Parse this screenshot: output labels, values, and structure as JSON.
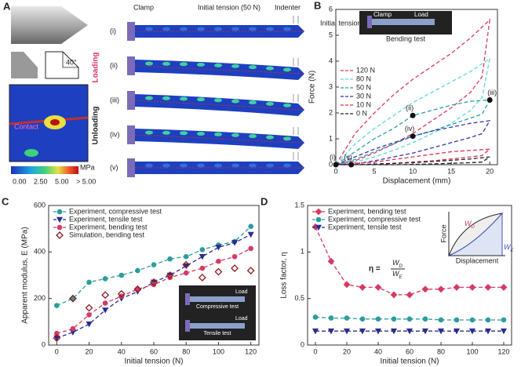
{
  "panel_a": {
    "label": "A",
    "clamp": "Clamp",
    "tension": "Initial tension (50 N)",
    "indenter": "Indenter",
    "stages": [
      "(i)",
      "(ii)",
      "(iii)",
      "(iv)",
      "(v)"
    ],
    "loading": "Loading",
    "unloading": "Unloading",
    "angle": "40°",
    "contact": "Contact",
    "colorbar_ticks": [
      "0.00",
      "2.50",
      "5.00",
      "> 5.00"
    ],
    "colorbar_unit": "MPa"
  },
  "chart_data": [
    {
      "type": "line",
      "panel_label": "B",
      "x_label": "Displacement (mm)",
      "y_label": "Force (N)",
      "xlim": [
        0,
        21
      ],
      "ylim": [
        0,
        6
      ],
      "xticks": [
        0,
        5,
        10,
        15,
        20
      ],
      "yticks": [
        0,
        1,
        2,
        3,
        4,
        5,
        6
      ],
      "legend": "upper left",
      "inset_texts": [
        "Initial tension",
        "Clamp",
        "Load",
        "Bending test"
      ],
      "points": [
        {
          "label": "(i)",
          "x": 0,
          "y": 0
        },
        {
          "label": "(ii)",
          "x": 10,
          "y": 1.9
        },
        {
          "label": "(iii)",
          "x": 20,
          "y": 2.5
        },
        {
          "label": "(iv)",
          "x": 10,
          "y": 1.1
        },
        {
          "label": "(v)",
          "x": 2,
          "y": 0
        }
      ],
      "series": [
        {
          "name": "120 N",
          "color": "#d63a62",
          "x": [
            0,
            2.5,
            5,
            7.5,
            10,
            12.5,
            15,
            17.5,
            20,
            19,
            17.5,
            15,
            12.5,
            10,
            7.5,
            5,
            2.5,
            0
          ],
          "values": [
            0,
            1.2,
            2.0,
            2.7,
            3.3,
            3.8,
            4.3,
            4.9,
            5.6,
            3.4,
            2.8,
            2.2,
            1.7,
            1.2,
            0.8,
            0.45,
            0.15,
            0
          ]
        },
        {
          "name": "80 N",
          "color": "#5fd8d8",
          "x": [
            0,
            2.5,
            5,
            7.5,
            10,
            12.5,
            15,
            17.5,
            20,
            19,
            17.5,
            15,
            12.5,
            10,
            7.5,
            5,
            2.5,
            0
          ],
          "values": [
            0,
            0.8,
            1.4,
            1.9,
            2.4,
            2.8,
            3.2,
            3.6,
            4.1,
            2.6,
            2.1,
            1.6,
            1.2,
            0.85,
            0.55,
            0.3,
            0.1,
            0
          ]
        },
        {
          "name": "50 N",
          "color": "#2a9d9d",
          "x": [
            0,
            2.5,
            5,
            7.5,
            10,
            12.5,
            15,
            17.5,
            20,
            19,
            17.5,
            15,
            12.5,
            10,
            7.5,
            5,
            2.5,
            0
          ],
          "values": [
            0,
            0.5,
            1.0,
            1.4,
            1.9,
            2.1,
            2.3,
            2.45,
            2.5,
            1.95,
            1.8,
            1.55,
            1.3,
            1.1,
            0.8,
            0.5,
            0.2,
            0
          ]
        },
        {
          "name": "30 N",
          "color": "#3535b0",
          "x": [
            0,
            2.5,
            5,
            7.5,
            10,
            12.5,
            15,
            17.5,
            20,
            19,
            17.5,
            15,
            12.5,
            10,
            7.5,
            5,
            2.5,
            0
          ],
          "values": [
            0,
            0.3,
            0.6,
            0.85,
            1.1,
            1.3,
            1.45,
            1.6,
            1.7,
            1.2,
            1.05,
            0.85,
            0.65,
            0.45,
            0.3,
            0.15,
            0.03,
            0
          ]
        },
        {
          "name": "10 N",
          "color": "#e0304e",
          "x": [
            0,
            2.5,
            5,
            7.5,
            10,
            12.5,
            15,
            17.5,
            20,
            19,
            17.5,
            15,
            12.5,
            10,
            7.5,
            5,
            2.5,
            0
          ],
          "values": [
            0,
            0.05,
            0.1,
            0.2,
            0.3,
            0.4,
            0.5,
            0.55,
            0.6,
            0.35,
            0.3,
            0.22,
            0.15,
            0.1,
            0.05,
            0.02,
            0,
            0
          ]
        },
        {
          "name": "0 N",
          "color": "#222222",
          "x": [
            0,
            2.5,
            5,
            7.5,
            10,
            12.5,
            15,
            17.5,
            20,
            19,
            17.5,
            15,
            12.5,
            10,
            7.5,
            5,
            2.5,
            0
          ],
          "values": [
            0,
            0,
            0.02,
            0.05,
            0.08,
            0.12,
            0.17,
            0.22,
            0.3,
            0.1,
            0.08,
            0.05,
            0.03,
            0.01,
            0,
            0,
            0,
            0
          ]
        }
      ]
    },
    {
      "type": "line",
      "panel_label": "C",
      "x_label": "Initial tension (N)",
      "y_label": "Apparent modulus, E (MPa)",
      "xlim": [
        -5,
        125
      ],
      "ylim": [
        0,
        600
      ],
      "xticks": [
        0,
        20,
        40,
        60,
        80,
        100,
        120
      ],
      "yticks": [
        0,
        200,
        400,
        600
      ],
      "legend": "upper left",
      "inset_texts": [
        "Load",
        "Compressive test",
        "Load",
        "Tensile test"
      ],
      "x": [
        0,
        10,
        20,
        30,
        40,
        50,
        60,
        70,
        80,
        90,
        100,
        110,
        120
      ],
      "series": [
        {
          "name": "Experiment, compressive test",
          "color": "#2a9d9d",
          "marker": "circle",
          "values": [
            170,
            200,
            270,
            285,
            300,
            320,
            345,
            370,
            380,
            410,
            430,
            445,
            510
          ]
        },
        {
          "name": "Experiment, tensile test",
          "color": "#2b2b8f",
          "marker": "triangle",
          "values": [
            30,
            55,
            90,
            150,
            200,
            230,
            270,
            300,
            340,
            380,
            420,
            440,
            475
          ]
        },
        {
          "name": "Experiment, bending test",
          "color": "#d63a62",
          "marker": "circle",
          "values": [
            50,
            70,
            130,
            180,
            210,
            240,
            260,
            290,
            310,
            330,
            360,
            380,
            415
          ]
        },
        {
          "name": "Simulation, bending test",
          "color": "#8b1a1a",
          "marker": "diamond",
          "hollow": true,
          "line": false,
          "values": [
            30,
            200,
            160,
            215,
            220,
            240,
            270,
            300,
            345,
            290,
            315,
            330,
            320
          ]
        }
      ]
    },
    {
      "type": "line",
      "panel_label": "D",
      "x_label": "Initial tension (N)",
      "y_label": "Loss factor, η",
      "xlim": [
        -5,
        125
      ],
      "ylim": [
        0,
        1.5
      ],
      "xticks": [
        0,
        20,
        40,
        60,
        80,
        100,
        120
      ],
      "yticks": [
        0,
        0.5,
        1,
        1.5
      ],
      "legend": "upper left",
      "inset_texts": [
        "Force",
        "Displacement",
        "W",
        "D",
        "W",
        "E"
      ],
      "formula": {
        "lhs": "η =",
        "num": "W",
        "num_sub": "D",
        "den": "W",
        "den_sub": "E"
      },
      "x": [
        0,
        10,
        20,
        30,
        40,
        50,
        60,
        70,
        80,
        90,
        100,
        110,
        120
      ],
      "series": [
        {
          "name": "Experiment, bending test",
          "color": "#d63a62",
          "marker": "diamond",
          "values": [
            1.27,
            0.9,
            0.65,
            0.62,
            0.62,
            0.54,
            0.54,
            0.6,
            0.6,
            0.62,
            0.62,
            0.62,
            0.62
          ]
        },
        {
          "name": "Experiment, compressive test",
          "color": "#2a9d9d",
          "marker": "circle",
          "values": [
            0.3,
            0.29,
            0.29,
            0.28,
            0.28,
            0.28,
            0.28,
            0.28,
            0.27,
            0.27,
            0.27,
            0.27,
            0.27
          ]
        },
        {
          "name": "Experiment, tensile test",
          "color": "#2b2b8f",
          "marker": "triangle",
          "values": [
            0.15,
            0.15,
            0.15,
            0.15,
            0.15,
            0.15,
            0.15,
            0.15,
            0.15,
            0.15,
            0.15,
            0.15,
            0.15
          ]
        }
      ]
    }
  ]
}
